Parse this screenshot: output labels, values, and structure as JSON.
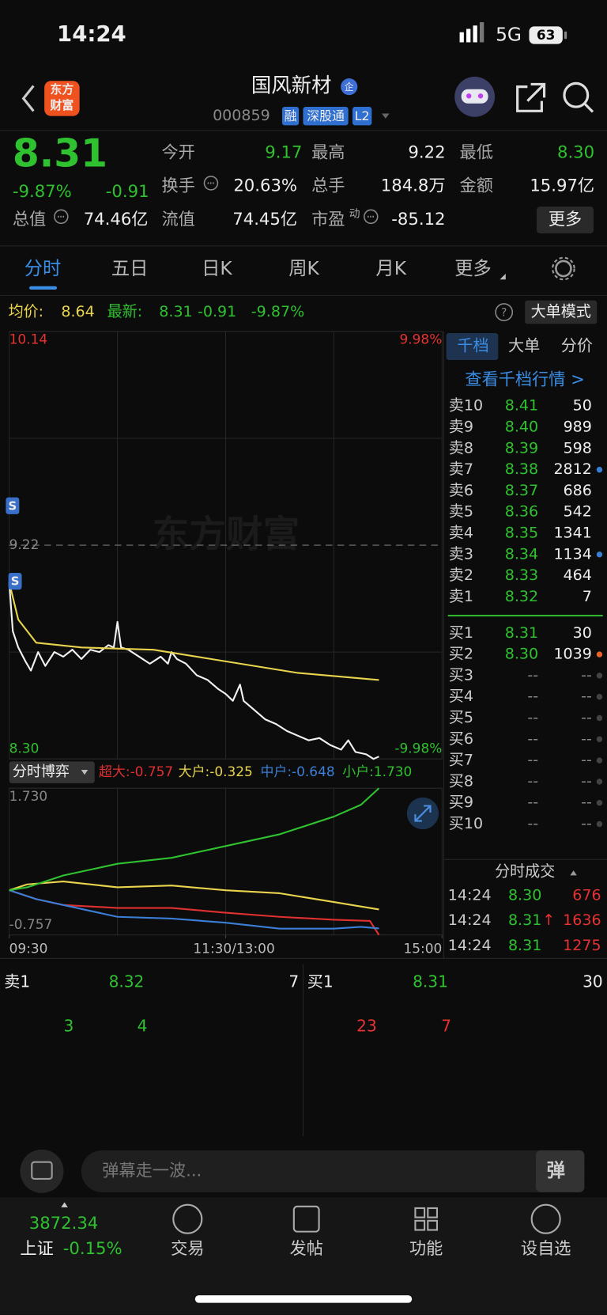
{
  "status_bar": {
    "time": "14:24",
    "network": "5G",
    "battery": "63"
  },
  "header": {
    "app_logo": [
      "东方",
      "财富"
    ],
    "title": "国风新材",
    "badge": "企",
    "code": "000859",
    "tags": [
      "融",
      "深股通",
      "L2"
    ]
  },
  "quote": {
    "price": "8.31",
    "change_pct": "-9.87%",
    "change": "-0.91",
    "stats": [
      {
        "label": "今开",
        "value": "9.17"
      },
      {
        "label": "最高",
        "value": "9.22"
      },
      {
        "label": "最低",
        "value": "8.30"
      },
      {
        "label": "换手",
        "value": "20.63%"
      },
      {
        "label": "总手",
        "value": "184.8万"
      },
      {
        "label": "金额",
        "value": "15.97亿"
      },
      {
        "label": "总值",
        "value": "74.46亿"
      },
      {
        "label": "流值",
        "value": "74.45亿"
      },
      {
        "label": "市盈",
        "sup": "动",
        "value": "-85.12"
      }
    ],
    "more": "更多"
  },
  "tabs": [
    "分时",
    "五日",
    "日K",
    "周K",
    "月K",
    "更多"
  ],
  "info_bar": {
    "avg_label": "均价:",
    "avg": "8.64",
    "latest_label": "最新:",
    "latest": "8.31",
    "change": "-0.91",
    "change_pct": "-9.87%",
    "help": "?",
    "mode_button": "大单模式"
  },
  "watermark": "东方财富",
  "trade_markers": [
    "S",
    "S"
  ],
  "chart_data": [
    {
      "type": "line",
      "xlim": [
        0,
        240
      ],
      "ylim": [
        8.3,
        10.14
      ],
      "yticks": [
        10.14,
        9.22,
        {
          "value": 8.3,
          "label": "8.30"
        }
      ],
      "y2lim": [
        -9.98,
        9.98
      ],
      "y2ticks": [
        {
          "value": 9.98,
          "label": "9.98%"
        },
        {
          "value": -9.98,
          "label": "-9.98%"
        }
      ],
      "series": [
        {
          "color": "#f2f2f2",
          "x": [
            0,
            2,
            5,
            9,
            12,
            16,
            20,
            25,
            30,
            35,
            40,
            45,
            50,
            55,
            58,
            60,
            62,
            66,
            72,
            78,
            84,
            88,
            90,
            93,
            98,
            104,
            110,
            116,
            120,
            124,
            128,
            130,
            136,
            142,
            148,
            154,
            160,
            166,
            172,
            178,
            184,
            188,
            192,
            198,
            202,
            205
          ],
          "values": [
            9.06,
            8.85,
            8.78,
            8.72,
            8.68,
            8.76,
            8.7,
            8.76,
            8.74,
            8.77,
            8.73,
            8.77,
            8.76,
            8.79,
            8.78,
            8.89,
            8.78,
            8.77,
            8.74,
            8.71,
            8.74,
            8.71,
            8.76,
            8.73,
            8.71,
            8.66,
            8.64,
            8.6,
            8.58,
            8.55,
            8.62,
            8.55,
            8.51,
            8.47,
            8.45,
            8.42,
            8.4,
            8.38,
            8.39,
            8.36,
            8.34,
            8.38,
            8.33,
            8.32,
            8.3,
            8.31
          ]
        },
        {
          "color": "#e8d44d",
          "x": [
            0,
            5,
            15,
            40,
            80,
            120,
            160,
            190,
            205
          ],
          "values": [
            9.06,
            8.9,
            8.8,
            8.78,
            8.77,
            8.72,
            8.67,
            8.65,
            8.64
          ]
        }
      ]
    },
    {
      "type": "line",
      "title": "分时博弈",
      "xlim": [
        0,
        240
      ],
      "ylim": [
        -0.757,
        1.73
      ],
      "yticks": [
        {
          "value": 1.73,
          "label": "1.730"
        },
        -0.757
      ],
      "xticks": [
        {
          "value": 0,
          "label": "09:30"
        },
        {
          "value": 120,
          "label": "11:30/13:00"
        },
        {
          "value": 240,
          "label": "15:00"
        }
      ],
      "series": [
        {
          "name": "超大:-0.757",
          "color": "#e03030",
          "x": [
            0,
            15,
            30,
            60,
            90,
            120,
            150,
            180,
            200,
            205
          ],
          "values": [
            0,
            -0.15,
            -0.25,
            -0.3,
            -0.3,
            -0.38,
            -0.45,
            -0.5,
            -0.52,
            -0.757
          ]
        },
        {
          "name": "大户:-0.325",
          "color": "#e8d44d",
          "x": [
            0,
            10,
            30,
            60,
            90,
            120,
            150,
            180,
            205
          ],
          "values": [
            0,
            0.1,
            0.15,
            0.05,
            0.08,
            0,
            -0.05,
            -0.2,
            -0.325
          ]
        },
        {
          "name": "中户:-0.648",
          "color": "#3a7fd5",
          "x": [
            0,
            15,
            30,
            60,
            90,
            120,
            150,
            180,
            195,
            205
          ],
          "values": [
            0,
            -0.15,
            -0.25,
            -0.45,
            -0.48,
            -0.55,
            -0.65,
            -0.65,
            -0.62,
            -0.648
          ]
        },
        {
          "name": "小户:1.730",
          "color": "#2fc12f",
          "x": [
            0,
            10,
            30,
            60,
            90,
            120,
            150,
            180,
            195,
            205
          ],
          "values": [
            0,
            0.05,
            0.25,
            0.45,
            0.55,
            0.75,
            0.95,
            1.25,
            1.45,
            1.73
          ]
        }
      ]
    }
  ],
  "order_book": {
    "tabs": [
      "千档",
      "大单",
      "分价"
    ],
    "link": "查看千档行情 >",
    "asks": [
      {
        "label": "卖10",
        "price": "8.41",
        "volume": "50"
      },
      {
        "label": "卖9",
        "price": "8.40",
        "volume": "989"
      },
      {
        "label": "卖8",
        "price": "8.39",
        "volume": "598"
      },
      {
        "label": "卖7",
        "price": "8.38",
        "volume": "2812",
        "dot": "#3a7fd5"
      },
      {
        "label": "卖6",
        "price": "8.37",
        "volume": "686"
      },
      {
        "label": "卖5",
        "price": "8.36",
        "volume": "542"
      },
      {
        "label": "卖4",
        "price": "8.35",
        "volume": "1341"
      },
      {
        "label": "卖3",
        "price": "8.34",
        "volume": "1134",
        "dot": "#3a7fd5"
      },
      {
        "label": "卖2",
        "price": "8.33",
        "volume": "464"
      },
      {
        "label": "卖1",
        "price": "8.32",
        "volume": "7"
      }
    ],
    "bids": [
      {
        "label": "买1",
        "price": "8.31",
        "volume": "30"
      },
      {
        "label": "买2",
        "price": "8.30",
        "volume": "1039",
        "dot": "#e8622a"
      },
      {
        "label": "买3",
        "price": "--",
        "volume": "--",
        "dot": "#444"
      },
      {
        "label": "买4",
        "price": "--",
        "volume": "--",
        "dot": "#444"
      },
      {
        "label": "买5",
        "price": "--",
        "volume": "--",
        "dot": "#444"
      },
      {
        "label": "买6",
        "price": "--",
        "volume": "--",
        "dot": "#444"
      },
      {
        "label": "买7",
        "price": "--",
        "volume": "--",
        "dot": "#444"
      },
      {
        "label": "买8",
        "price": "--",
        "volume": "--",
        "dot": "#444"
      },
      {
        "label": "买9",
        "price": "--",
        "volume": "--",
        "dot": "#444"
      },
      {
        "label": "买10",
        "price": "--",
        "volume": "--",
        "dot": "#444"
      }
    ]
  },
  "trades": {
    "title": "分时成交",
    "rows": [
      {
        "time": "14:24",
        "price": "8.30",
        "volume": "676"
      },
      {
        "time": "14:24",
        "price": "8.31",
        "arrow": "↑",
        "volume": "1636"
      },
      {
        "time": "14:24",
        "price": "8.31",
        "volume": "1275"
      }
    ]
  },
  "level1": {
    "ask": {
      "label": "卖1",
      "price": "8.32",
      "volume": "7"
    },
    "bid": {
      "label": "买1",
      "price": "8.31",
      "volume": "30"
    },
    "ask_counts": [
      "3",
      "4"
    ],
    "bid_counts": [
      "23",
      "7"
    ]
  },
  "comment_bar": {
    "placeholder": "弹幕走一波...",
    "danmu": "弹"
  },
  "bottom_nav": {
    "index_value": "3872.34",
    "index_name": "上证",
    "index_change": "-0.15%",
    "items": [
      "交易",
      "发帖",
      "功能",
      "设自选"
    ]
  }
}
